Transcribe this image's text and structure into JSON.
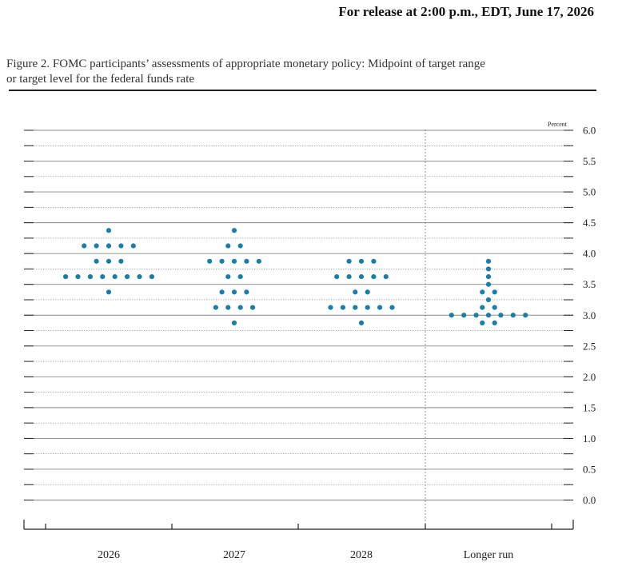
{
  "release_note": "For release at 2:00 p.m., EDT, June 17, 2026",
  "figure_title": "Figure 2. FOMC participants’ assessments of appropriate monetary policy: Midpoint of target range\nor target level for the federal funds rate",
  "colors": {
    "dot": "#1a7fa8",
    "grid": "#888888",
    "axis": "#222222"
  },
  "chart_data": {
    "type": "scatter",
    "title": "Figure 2. FOMC participants’ assessments of appropriate monetary policy: Midpoint of target range or target level for the federal funds rate",
    "ylabel": "Percent",
    "ylim": [
      0,
      6
    ],
    "y_ticks": [
      "0.0",
      "0.5",
      "1.0",
      "1.5",
      "2.0",
      "2.5",
      "3.0",
      "3.5",
      "4.0",
      "4.5",
      "5.0",
      "5.5",
      "6.0"
    ],
    "categories": [
      "2026",
      "2027",
      "2028",
      "Longer run"
    ],
    "grid": true,
    "dots": [
      {
        "category": "2026",
        "y": 4.375,
        "count": 1
      },
      {
        "category": "2026",
        "y": 4.125,
        "count": 5
      },
      {
        "category": "2026",
        "y": 3.875,
        "count": 3
      },
      {
        "category": "2026",
        "y": 3.625,
        "count": 8
      },
      {
        "category": "2026",
        "y": 3.375,
        "count": 1
      },
      {
        "category": "2027",
        "y": 4.375,
        "count": 1
      },
      {
        "category": "2027",
        "y": 4.125,
        "count": 2
      },
      {
        "category": "2027",
        "y": 3.875,
        "count": 5
      },
      {
        "category": "2027",
        "y": 3.625,
        "count": 2
      },
      {
        "category": "2027",
        "y": 3.375,
        "count": 3
      },
      {
        "category": "2027",
        "y": 3.125,
        "count": 4
      },
      {
        "category": "2027",
        "y": 2.875,
        "count": 1
      },
      {
        "category": "2028",
        "y": 3.875,
        "count": 3
      },
      {
        "category": "2028",
        "y": 3.625,
        "count": 5
      },
      {
        "category": "2028",
        "y": 3.375,
        "count": 2
      },
      {
        "category": "2028",
        "y": 3.125,
        "count": 6
      },
      {
        "category": "2028",
        "y": 2.875,
        "count": 1
      },
      {
        "category": "Longer run",
        "y": 3.875,
        "count": 1
      },
      {
        "category": "Longer run",
        "y": 3.75,
        "count": 1
      },
      {
        "category": "Longer run",
        "y": 3.625,
        "count": 1
      },
      {
        "category": "Longer run",
        "y": 3.5,
        "count": 1
      },
      {
        "category": "Longer run",
        "y": 3.375,
        "count": 2
      },
      {
        "category": "Longer run",
        "y": 3.25,
        "count": 1
      },
      {
        "category": "Longer run",
        "y": 3.125,
        "count": 2
      },
      {
        "category": "Longer run",
        "y": 3.0,
        "count": 7
      },
      {
        "category": "Longer run",
        "y": 2.875,
        "count": 2
      }
    ]
  }
}
